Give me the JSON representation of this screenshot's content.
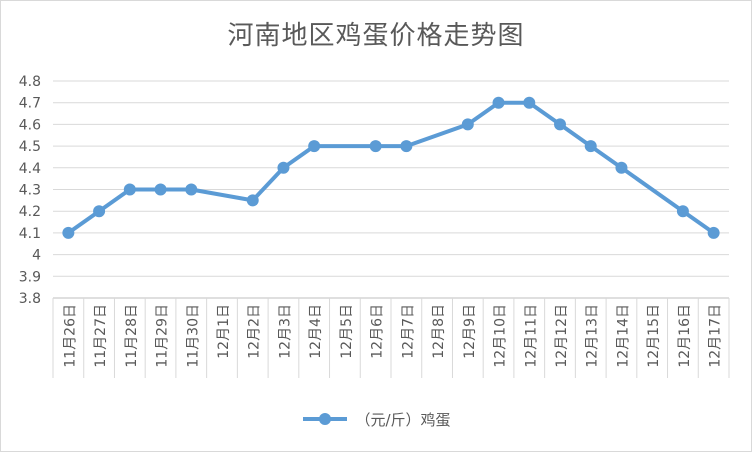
{
  "chart_data": {
    "type": "line",
    "title": "河南地区鸡蛋价格走势图",
    "xlabel": "",
    "ylabel": "",
    "categories": [
      "11月26日",
      "11月27日",
      "11月28日",
      "11月29日",
      "11月30日",
      "12月1日",
      "12月2日",
      "12月3日",
      "12月4日",
      "12月5日",
      "12月6日",
      "12月7日",
      "12月8日",
      "12月9日",
      "12月10日",
      "12月11日",
      "12月12日",
      "12月13日",
      "12月14日",
      "12月15日",
      "12月16日",
      "12月17日"
    ],
    "series": [
      {
        "name": "（元/斤）鸡蛋",
        "values": [
          4.1,
          4.2,
          4.3,
          4.3,
          4.3,
          null,
          4.25,
          4.4,
          4.5,
          null,
          4.5,
          4.5,
          null,
          4.6,
          4.7,
          4.7,
          4.6,
          4.5,
          4.4,
          null,
          4.2,
          4.1
        ]
      }
    ],
    "ylim": [
      3.8,
      4.8
    ],
    "yticks": [
      "3.8",
      "3.9",
      "4",
      "4.1",
      "4.2",
      "4.3",
      "4.4",
      "4.5",
      "4.6",
      "4.7",
      "4.8"
    ],
    "grid": true,
    "legend": "bottom",
    "colors": {
      "line": "#5b9bd5",
      "grid": "#d9d9d9",
      "axis": "#bfbfbf",
      "text": "#595959"
    }
  }
}
